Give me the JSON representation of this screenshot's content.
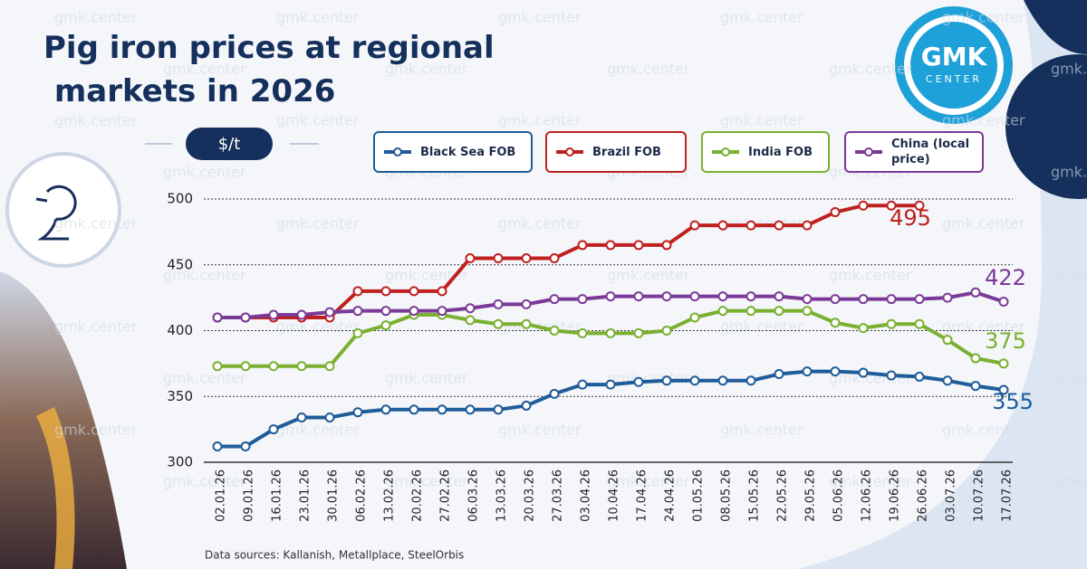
{
  "title": "Pig iron prices at regional markets in 2026",
  "logo": {
    "main": "GMK",
    "sub": "CENTER"
  },
  "watermark": "gmk.center",
  "unit": "$/t",
  "source": "Data sources: Kallanish, Metallplace, SteelOrbis",
  "chart_data": {
    "type": "line",
    "categories": [
      "02.01.26",
      "09.01.26",
      "16.01.26",
      "23.01.26",
      "30.01.26",
      "06.02.26",
      "13.02.26",
      "20.02.26",
      "27.02.26",
      "06.03.26",
      "13.03.26",
      "20.03.26",
      "27.03.26",
      "03.04.26",
      "10.04.26",
      "17.04.26",
      "24.04.26",
      "01.05.26",
      "08.05.26",
      "15.05.26",
      "22.05.26",
      "29.05.26",
      "05.06.26",
      "12.06.26",
      "19.06.26",
      "26.06.26",
      "03.07.26",
      "10.07.26",
      "17.07.26"
    ],
    "series": [
      {
        "name": "Black Sea FOB",
        "color": "#1f5c99",
        "values": [
          312,
          312,
          325,
          334,
          334,
          338,
          340,
          340,
          340,
          340,
          340,
          343,
          352,
          359,
          359,
          361,
          362,
          362,
          362,
          362,
          367,
          369,
          369,
          368,
          366,
          365,
          362,
          358,
          355
        ]
      },
      {
        "name": "Brazil FOB",
        "color": "#c0201f",
        "values": [
          410,
          410,
          410,
          410,
          410,
          430,
          430,
          430,
          430,
          455,
          455,
          455,
          455,
          465,
          465,
          465,
          465,
          480,
          480,
          480,
          480,
          480,
          490,
          495,
          495,
          495,
          null,
          null,
          null
        ]
      },
      {
        "name": "India FOB",
        "color": "#79b030",
        "values": [
          373,
          373,
          373,
          373,
          373,
          398,
          404,
          412,
          412,
          408,
          405,
          405,
          400,
          398,
          398,
          398,
          400,
          410,
          415,
          415,
          415,
          415,
          406,
          402,
          405,
          405,
          393,
          379,
          375
        ]
      },
      {
        "name": "China (local price)",
        "color": "#7b3a97",
        "values": [
          410,
          410,
          412,
          412,
          414,
          415,
          415,
          415,
          415,
          417,
          420,
          420,
          424,
          424,
          426,
          426,
          426,
          426,
          426,
          426,
          426,
          424,
          424,
          424,
          424,
          424,
          425,
          429,
          422
        ]
      }
    ],
    "ylim": [
      300,
      500
    ],
    "yticks": [
      300,
      350,
      400,
      450,
      500
    ],
    "grid": true
  }
}
